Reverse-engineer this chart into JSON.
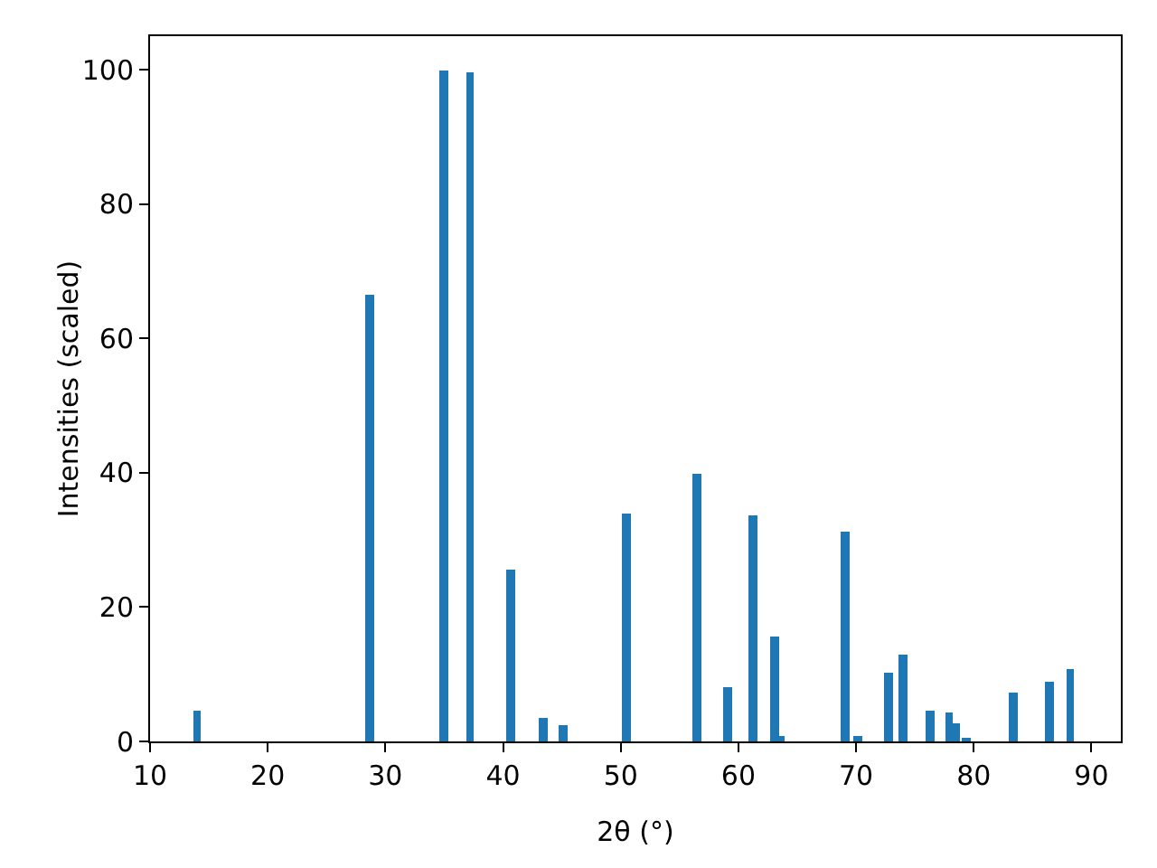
{
  "chart_data": {
    "type": "bar",
    "xlabel": "2θ (°)",
    "ylabel": "Intensities (scaled)",
    "x": [
      14.0,
      28.6,
      35.0,
      37.2,
      40.7,
      43.4,
      45.1,
      50.5,
      56.5,
      59.1,
      61.3,
      63.1,
      63.5,
      69.1,
      70.2,
      72.7,
      74.0,
      76.3,
      77.9,
      78.4,
      79.4,
      83.4,
      86.4,
      88.2
    ],
    "values": [
      4.7,
      66.5,
      100,
      99.5,
      25.5,
      3.5,
      2.4,
      34.0,
      39.9,
      8.1,
      33.7,
      15.5,
      0.8,
      31.2,
      0.9,
      10.3,
      12.8,
      4.6,
      4.3,
      2.7,
      0.5,
      7.3,
      9.0,
      10.9
    ],
    "color": "#1f77b4",
    "xlim": [
      10,
      92.5
    ],
    "ylim": [
      0,
      105
    ],
    "xticks": [
      10,
      20,
      30,
      40,
      50,
      60,
      70,
      80,
      90
    ],
    "yticks": [
      0,
      20,
      40,
      60,
      80,
      100
    ],
    "grid": false,
    "legend": false
  }
}
